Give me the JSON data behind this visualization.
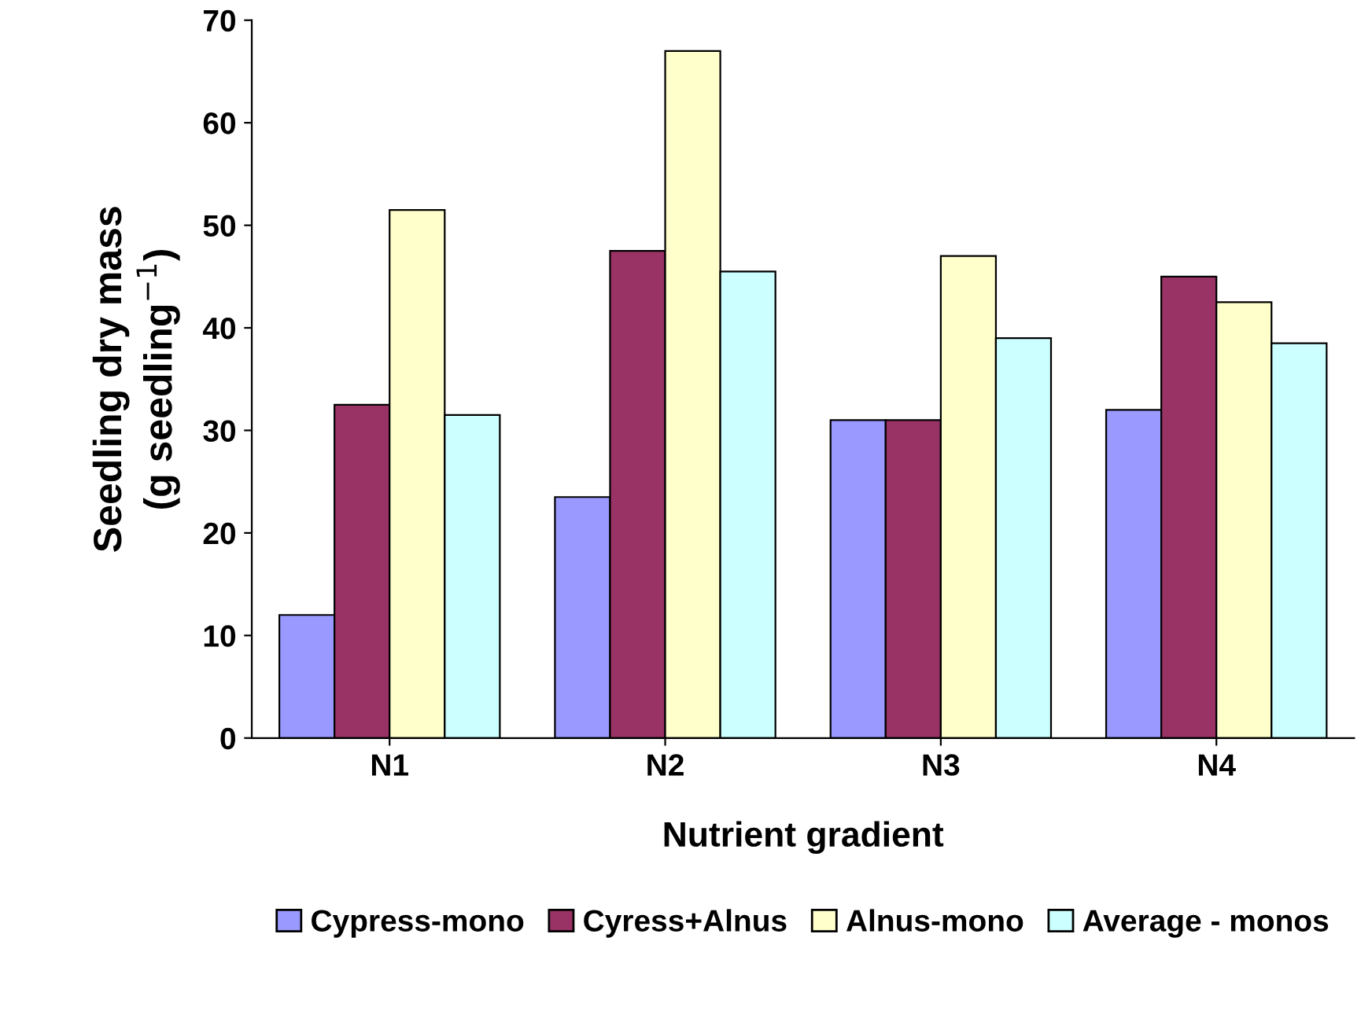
{
  "chart_data": {
    "type": "bar",
    "xlabel": "Nutrient gradient",
    "ylabel": "Seedling dry mass\n(g seedling$^{−1}$)",
    "categories": [
      "N1",
      "N2",
      "N3",
      "N4"
    ],
    "series": [
      {
        "name": "Cypress-mono",
        "color": "#9999ff",
        "values": [
          12,
          23.5,
          31,
          32
        ]
      },
      {
        "name": "Cyress+Alnus",
        "color": "#993366",
        "values": [
          32.5,
          47.5,
          31,
          45
        ]
      },
      {
        "name": "Alnus-mono",
        "color": "#ffffcc",
        "values": [
          51.5,
          67,
          47,
          42.5
        ]
      },
      {
        "name": "Average - monos",
        "color": "#ccffff",
        "values": [
          31.5,
          45.5,
          39,
          38.5
        ]
      }
    ],
    "ylim": [
      0,
      70
    ],
    "yticks": [
      0,
      10,
      20,
      30,
      40,
      50,
      60,
      70
    ],
    "grid": false,
    "legend": "bottom"
  }
}
